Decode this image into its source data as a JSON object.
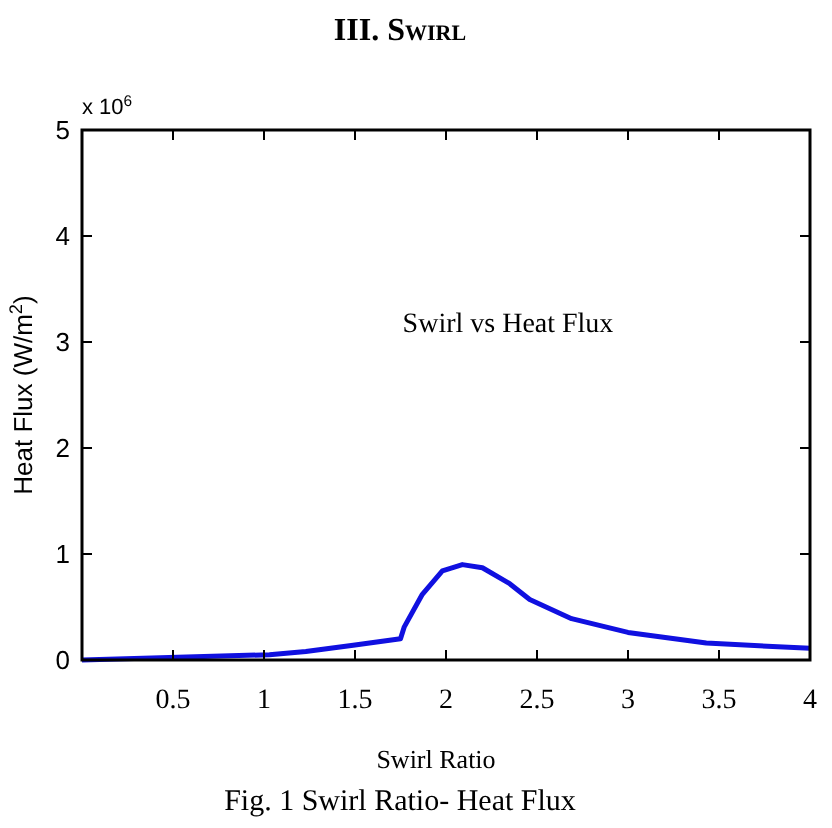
{
  "chart_data": {
    "type": "line",
    "title": "III. Swirl",
    "xlabel": "Swirl Ratio",
    "ylabel": "Heat Flux (W/m$^{2}$)",
    "annotations": [
      "x 10$^{6}$",
      "Swirl vs Heat Flux",
      "Fig. 1 Swirl Ratio- Heat Flux"
    ],
    "x": [
      0,
      1.03,
      1.23,
      1.49,
      1.75,
      1.77,
      1.87,
      1.98,
      2.09,
      2.2,
      2.35,
      2.46,
      2.69,
      3.0,
      3.43,
      4.0
    ],
    "series": [
      {
        "color": "#1010e0",
        "values": [
          0,
          0.05,
          0.08,
          0.14,
          0.2,
          0.31,
          0.62,
          0.84,
          0.9,
          0.87,
          0.72,
          0.57,
          0.39,
          0.26,
          0.16,
          0.11
        ]
      }
    ],
    "xlim": [
      0,
      4
    ],
    "xticks": [
      0.5,
      1,
      1.5,
      2,
      2.5,
      3,
      3.5,
      4
    ],
    "ylim": [
      0,
      5
    ],
    "yticks": [
      0,
      1,
      2,
      3,
      4,
      5
    ],
    "marker": "none",
    "line_style": "solid"
  }
}
